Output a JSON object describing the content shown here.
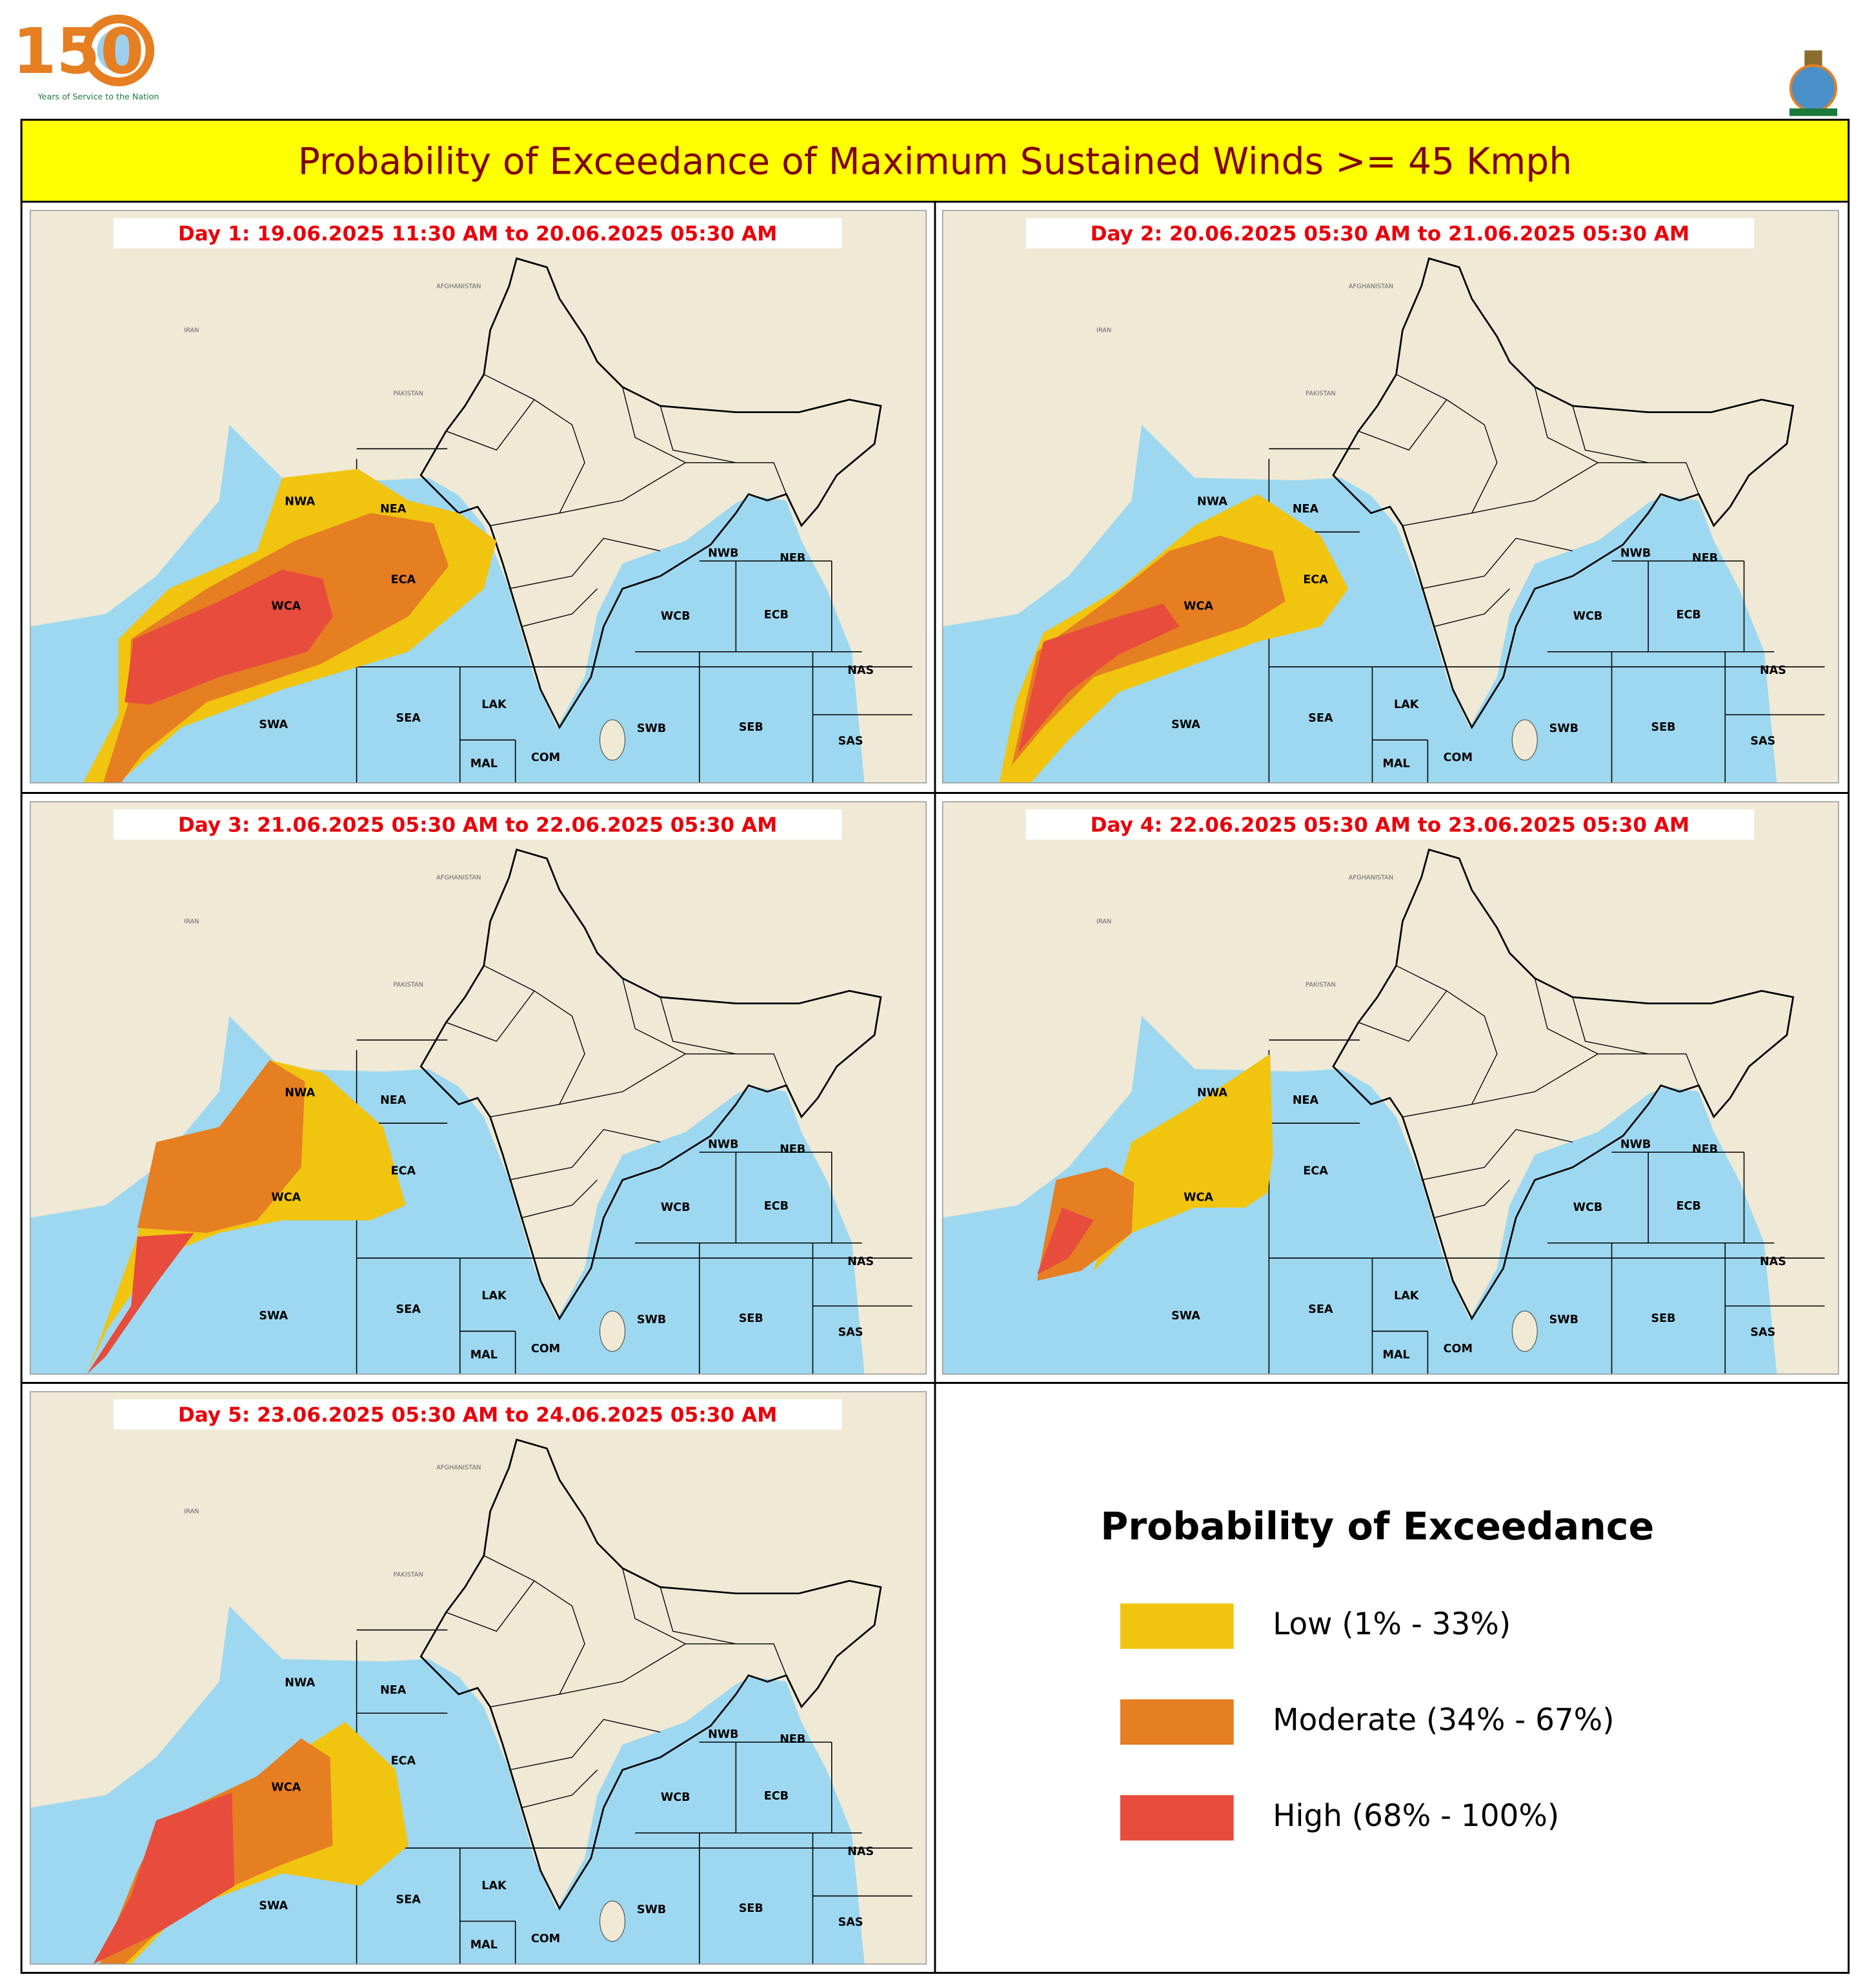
{
  "header": {
    "logo_number": "150",
    "logo_tagline": "Years of Service to the Nation"
  },
  "title": "Probability of Exceedance of Maximum Sustained Winds >= 45 Kmph",
  "panels": [
    {
      "title": "Day 1: 19.06.2025 11:30 AM to 20.06.2025 05:30 AM"
    },
    {
      "title": "Day 2: 20.06.2025 05:30 AM to 21.06.2025 05:30 AM"
    },
    {
      "title": "Day 3: 21.06.2025 05:30 AM to 22.06.2025 05:30 AM"
    },
    {
      "title": "Day 4: 22.06.2025 05:30 AM to 23.06.2025 05:30 AM"
    },
    {
      "title": "Day 5: 23.06.2025 05:30 AM to 24.06.2025 05:30 AM"
    }
  ],
  "countries": [
    "IRAN",
    "PAKISTAN",
    "AFGHANISTAN"
  ],
  "regions": [
    "NWA",
    "NEA",
    "ECA",
    "WCA",
    "NWB",
    "NEB",
    "WCB",
    "ECB",
    "NAS",
    "SWA",
    "SEA",
    "LAK",
    "MAL",
    "COM",
    "SWB",
    "SEB",
    "SAS"
  ],
  "legend": {
    "title": "Probability of Exceedance",
    "items": [
      {
        "label": "Low (1% - 33%)",
        "color": "#f1c40f"
      },
      {
        "label": "Moderate (34% - 67%)",
        "color": "#e67e22"
      },
      {
        "label": "High (68% - 100%)",
        "color": "#e74c3c"
      }
    ]
  }
}
